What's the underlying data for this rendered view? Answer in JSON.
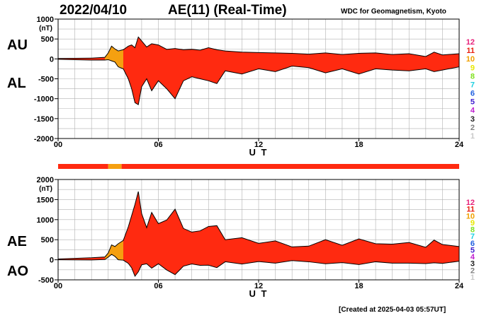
{
  "header": {
    "date": "2022/04/10",
    "index_title": "AE(11) (Real-Time)",
    "source": "WDC for Geomagnetism, Kyoto"
  },
  "footer": {
    "created": "[Created at 2025-04-03 05:57UT]"
  },
  "stations_legend": [
    {
      "label": "12",
      "color": "#e8207a"
    },
    {
      "label": "11",
      "color": "#e82010"
    },
    {
      "label": "10",
      "color": "#f0a000"
    },
    {
      "label": "9",
      "color": "#e8e800"
    },
    {
      "label": "8",
      "color": "#80e020"
    },
    {
      "label": "7",
      "color": "#20d0e0"
    },
    {
      "label": "6",
      "color": "#2060e0"
    },
    {
      "label": "5",
      "color": "#4020d0"
    },
    {
      "label": "4",
      "color": "#c020d0"
    },
    {
      "label": "3",
      "color": "#202020"
    },
    {
      "label": "2",
      "color": "#808080"
    },
    {
      "label": "1",
      "color": "#c8c8c8"
    }
  ],
  "colors": {
    "fill_main": "#ff2a10",
    "fill_early": "#f5a010",
    "curve": "#000000",
    "grid": "#b0b0b0"
  },
  "chart_data": [
    {
      "type": "area",
      "series": [
        {
          "name": "AU",
          "x": [
            0,
            1,
            2,
            2.8,
            3.0,
            3.2,
            3.4,
            3.6,
            3.9,
            4.2,
            4.4,
            4.6,
            4.8,
            5.0,
            5.3,
            5.6,
            6.0,
            6.5,
            7.0,
            7.5,
            8.0,
            8.5,
            9.0,
            9.5,
            10,
            11,
            12,
            13,
            14,
            15,
            16,
            17,
            18,
            19,
            20,
            21,
            22,
            22.5,
            23,
            24
          ],
          "values": [
            10,
            15,
            20,
            40,
            150,
            320,
            250,
            200,
            230,
            320,
            350,
            280,
            550,
            450,
            300,
            380,
            350,
            240,
            260,
            230,
            240,
            220,
            280,
            230,
            200,
            170,
            160,
            150,
            140,
            120,
            150,
            110,
            140,
            150,
            110,
            130,
            60,
            170,
            100,
            130
          ]
        },
        {
          "name": "AL",
          "x": [
            0,
            1,
            2,
            2.8,
            3.0,
            3.2,
            3.4,
            3.6,
            3.9,
            4.2,
            4.4,
            4.6,
            4.8,
            5.0,
            5.3,
            5.6,
            6.0,
            6.5,
            7.0,
            7.5,
            8.0,
            8.5,
            9.0,
            9.5,
            10,
            11,
            12,
            13,
            14,
            15,
            16,
            17,
            18,
            19,
            20,
            21,
            22,
            22.5,
            23,
            24
          ],
          "values": [
            -10,
            -20,
            -30,
            -30,
            -20,
            -50,
            -80,
            -200,
            -250,
            -500,
            -750,
            -1100,
            -1150,
            -700,
            -500,
            -800,
            -550,
            -750,
            -1000,
            -550,
            -450,
            -500,
            -550,
            -620,
            -300,
            -380,
            -250,
            -320,
            -180,
            -220,
            -350,
            -250,
            -380,
            -250,
            -280,
            -300,
            -250,
            -320,
            -280,
            -200
          ]
        }
      ],
      "ylabel": "(nT)",
      "ylim": [
        -2000,
        1000
      ],
      "yticks": [
        -2000,
        -1500,
        -1000,
        -500,
        0,
        500,
        1000
      ],
      "xticks": [
        0,
        6,
        12,
        18,
        24
      ],
      "xtick_labels": [
        "00",
        "06",
        "12",
        "18",
        "24"
      ],
      "xlabel": "U T",
      "side_labels": [
        "AU",
        "AL"
      ],
      "grid": true
    },
    {
      "type": "area",
      "series": [
        {
          "name": "AE",
          "x": [
            0,
            1,
            2,
            2.8,
            3.0,
            3.2,
            3.4,
            3.6,
            3.9,
            4.2,
            4.4,
            4.6,
            4.8,
            5.0,
            5.3,
            5.6,
            6.0,
            6.5,
            7.0,
            7.5,
            8.0,
            8.5,
            9.0,
            9.5,
            10,
            11,
            12,
            13,
            14,
            15,
            16,
            17,
            18,
            19,
            20,
            21,
            22,
            22.5,
            23,
            24
          ],
          "values": [
            20,
            35,
            50,
            70,
            170,
            370,
            330,
            400,
            480,
            820,
            1100,
            1380,
            1700,
            1150,
            800,
            1180,
            900,
            990,
            1260,
            780,
            690,
            720,
            830,
            850,
            500,
            550,
            410,
            470,
            320,
            340,
            500,
            360,
            520,
            400,
            390,
            430,
            310,
            490,
            380,
            330
          ]
        },
        {
          "name": "AO",
          "x": [
            0,
            1,
            2,
            2.8,
            3.0,
            3.2,
            3.4,
            3.6,
            3.9,
            4.2,
            4.4,
            4.6,
            4.8,
            5.0,
            5.3,
            5.6,
            6.0,
            6.5,
            7.0,
            7.5,
            8.0,
            8.5,
            9.0,
            9.5,
            10,
            11,
            12,
            13,
            14,
            15,
            16,
            17,
            18,
            19,
            20,
            21,
            22,
            22.5,
            23,
            24
          ],
          "values": [
            0,
            -3,
            -5,
            5,
            65,
            135,
            85,
            0,
            -10,
            -90,
            -200,
            -410,
            -300,
            -125,
            -100,
            -210,
            -100,
            -255,
            -370,
            -160,
            -105,
            -140,
            -135,
            -195,
            -50,
            -105,
            -45,
            -85,
            -20,
            -50,
            -100,
            -70,
            -120,
            -50,
            -85,
            -85,
            -95,
            -75,
            -90,
            -35
          ]
        }
      ],
      "ylabel": "(nT)",
      "ylim": [
        -500,
        2000
      ],
      "yticks": [
        -500,
        0,
        500,
        1000,
        1500,
        2000
      ],
      "xticks": [
        0,
        6,
        12,
        18,
        24
      ],
      "xtick_labels": [
        "00",
        "06",
        "12",
        "18",
        "24"
      ],
      "xlabel": "U T",
      "side_labels": [
        "AE",
        "AO"
      ],
      "grid": true
    }
  ],
  "station_count_bar": {
    "segments": [
      {
        "from": 0,
        "to": 3.0,
        "color": "#ff2a10"
      },
      {
        "from": 3.0,
        "to": 3.8,
        "color": "#f5a010"
      },
      {
        "from": 3.8,
        "to": 24,
        "color": "#ff2a10"
      }
    ]
  }
}
